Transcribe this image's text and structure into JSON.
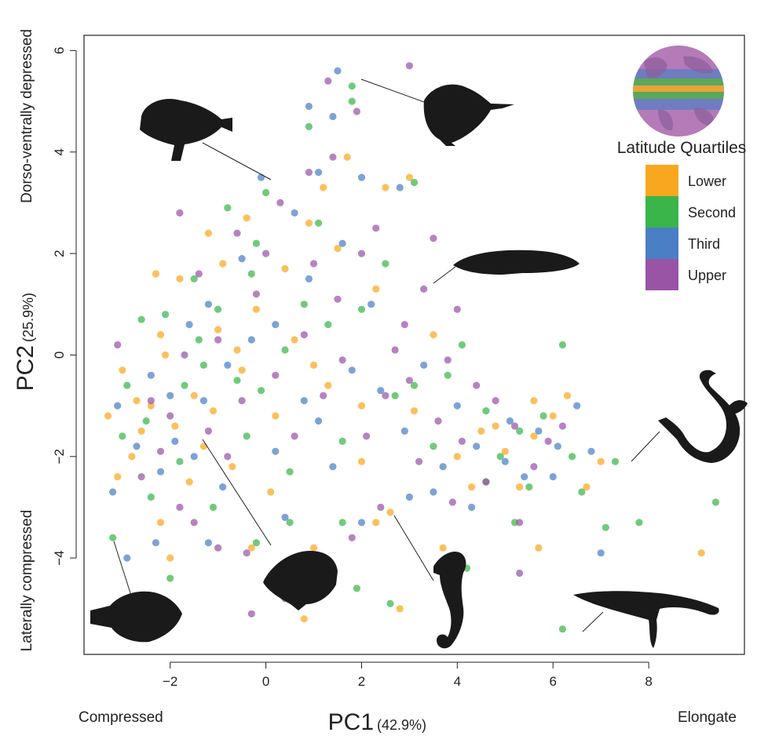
{
  "chart_data": {
    "type": "scatter",
    "title": "",
    "xlabel": "PC1",
    "xlabel_pct": "(42.9%)",
    "ylabel": "PC2",
    "ylabel_pct": "(25.9%)",
    "xlim": [
      -3.8,
      10.0
    ],
    "ylim": [
      -5.9,
      6.3
    ],
    "x_ticks": [
      -2,
      0,
      2,
      4,
      6,
      8
    ],
    "y_ticks": [
      -4,
      -2,
      0,
      2,
      4,
      6
    ],
    "x_tick_labels": [
      "−2",
      "0",
      "2",
      "4",
      "6",
      "8"
    ],
    "y_tick_labels": [
      "−4",
      "−2",
      "0",
      "2",
      "4",
      "6"
    ],
    "x_axis_left_descriptor": "Compressed",
    "x_axis_right_descriptor": "Elongate",
    "y_axis_top_descriptor": "Dorso-ventrally depressed",
    "y_axis_bottom_descriptor": "Laterally compressed",
    "grid": false,
    "legend": {
      "title": "Latitude Quartiles",
      "placement": "top-right",
      "entries": [
        {
          "label": "Lower",
          "color": "#F9A71E"
        },
        {
          "label": "Second",
          "color": "#3AB54A"
        },
        {
          "label": "Third",
          "color": "#4A7FC5"
        },
        {
          "label": "Upper",
          "color": "#9954A6"
        }
      ]
    },
    "series": [
      {
        "name": "Lower",
        "color": "#F9A71E",
        "points": [
          [
            2.5,
            3.3
          ],
          [
            3.0,
            3.5
          ],
          [
            1.7,
            3.9
          ],
          [
            1.2,
            3.3
          ],
          [
            -3.3,
            -1.2
          ],
          [
            -3.1,
            -2.4
          ],
          [
            -2.2,
            -3.3
          ],
          [
            -2.0,
            -4.0
          ],
          [
            -0.3,
            -3.8
          ],
          [
            0.8,
            -5.2
          ],
          [
            1.0,
            -3.8
          ],
          [
            2.3,
            -3.3
          ],
          [
            2.8,
            -5.0
          ],
          [
            3.7,
            -3.8
          ],
          [
            5.3,
            -2.6
          ],
          [
            5.6,
            -0.9
          ],
          [
            6.3,
            -0.8
          ],
          [
            6.7,
            -2.6
          ],
          [
            7.0,
            -2.1
          ],
          [
            9.1,
            -3.9
          ],
          [
            5.7,
            -3.8
          ],
          [
            2.6,
            -3.1
          ],
          [
            4.5,
            -1.5
          ],
          [
            3.5,
            0.4
          ],
          [
            -0.4,
            2.7
          ],
          [
            0.4,
            1.7
          ],
          [
            1.5,
            2.1
          ],
          [
            -1.8,
            1.5
          ],
          [
            -2.3,
            1.6
          ],
          [
            -2.1,
            0.0
          ],
          [
            0.2,
            -1.2
          ],
          [
            -1.0,
            0.5
          ],
          [
            -1.5,
            -0.8
          ],
          [
            -0.5,
            -0.3
          ],
          [
            1.0,
            -0.2
          ],
          [
            2.0,
            -1.0
          ],
          [
            4.0,
            -2.0
          ],
          [
            5.0,
            -1.9
          ],
          [
            4.8,
            -1.4
          ],
          [
            3.1,
            -1.1
          ],
          [
            -2.7,
            -0.9
          ],
          [
            -2.6,
            -1.5
          ],
          [
            -2.4,
            -1.0
          ],
          [
            -1.9,
            -1.4
          ],
          [
            -1.3,
            -1.8
          ],
          [
            -1.1,
            -1.1
          ],
          [
            -0.9,
            1.8
          ],
          [
            -0.2,
            0.9
          ],
          [
            0.6,
            0.3
          ],
          [
            1.3,
            -0.6
          ],
          [
            -2.8,
            -2.0
          ],
          [
            -3.0,
            -0.3
          ],
          [
            -1.6,
            -2.5
          ],
          [
            -0.7,
            -2.2
          ],
          [
            0.1,
            -2.7
          ],
          [
            2.3,
            1.3
          ],
          [
            2.0,
            -2.1
          ],
          [
            5.6,
            -1.6
          ],
          [
            6.0,
            -1.2
          ],
          [
            4.3,
            -2.6
          ],
          [
            -1.2,
            2.4
          ],
          [
            0.9,
            2.6
          ],
          [
            -0.6,
            0.1
          ],
          [
            -2.2,
            0.4
          ]
        ]
      },
      {
        "name": "Second",
        "color": "#3AB54A",
        "points": [
          [
            1.8,
            5.3
          ],
          [
            1.8,
            5.0
          ],
          [
            0.9,
            4.5
          ],
          [
            3.1,
            3.4
          ],
          [
            -3.2,
            -3.6
          ],
          [
            -2.0,
            -4.4
          ],
          [
            -0.2,
            -3.7
          ],
          [
            1.9,
            -4.6
          ],
          [
            2.6,
            -4.9
          ],
          [
            4.2,
            -4.2
          ],
          [
            6.2,
            -5.4
          ],
          [
            7.3,
            -2.1
          ],
          [
            7.1,
            -3.4
          ],
          [
            7.8,
            -3.3
          ],
          [
            9.4,
            -2.9
          ],
          [
            6.6,
            -2.7
          ],
          [
            5.2,
            -3.3
          ],
          [
            4.9,
            -2.0
          ],
          [
            5.8,
            -1.2
          ],
          [
            6.2,
            0.2
          ],
          [
            4.1,
            0.2
          ],
          [
            3.1,
            -0.6
          ],
          [
            -0.8,
            2.9
          ],
          [
            0.0,
            3.2
          ],
          [
            1.1,
            2.6
          ],
          [
            -2.1,
            0.8
          ],
          [
            -2.6,
            0.7
          ],
          [
            -1.5,
            1.5
          ],
          [
            -0.3,
            1.6
          ],
          [
            0.8,
            1.0
          ],
          [
            -0.6,
            -0.5
          ],
          [
            -1.3,
            -0.2
          ],
          [
            -2.5,
            -1.3
          ],
          [
            -1.8,
            -2.1
          ],
          [
            -1.1,
            -3.0
          ],
          [
            0.5,
            -2.3
          ],
          [
            1.6,
            -1.7
          ],
          [
            2.7,
            -0.8
          ],
          [
            3.5,
            -1.8
          ],
          [
            4.6,
            -1.1
          ],
          [
            5.3,
            -1.5
          ],
          [
            6.4,
            -2.0
          ],
          [
            -3.0,
            -1.6
          ],
          [
            -2.4,
            -2.8
          ],
          [
            -0.4,
            -1.6
          ],
          [
            0.4,
            0.1
          ],
          [
            1.3,
            0.6
          ],
          [
            2.0,
            0.9
          ],
          [
            -1.0,
            0.9
          ],
          [
            -1.7,
            -0.6
          ],
          [
            -0.2,
            2.2
          ],
          [
            2.5,
            1.8
          ],
          [
            3.8,
            -0.4
          ],
          [
            4.6,
            -2.5
          ],
          [
            5.5,
            -2.6
          ],
          [
            -2.9,
            -0.6
          ],
          [
            -1.4,
            0.3
          ],
          [
            -0.1,
            -0.7
          ],
          [
            1.6,
            -3.3
          ],
          [
            0.5,
            -3.3
          ]
        ]
      },
      {
        "name": "Third",
        "color": "#4A7FC5",
        "points": [
          [
            1.5,
            5.6
          ],
          [
            0.9,
            4.9
          ],
          [
            1.4,
            4.7
          ],
          [
            1.1,
            3.6
          ],
          [
            2.0,
            3.5
          ],
          [
            2.8,
            3.3
          ],
          [
            -3.2,
            -2.7
          ],
          [
            -2.9,
            -4.0
          ],
          [
            -2.3,
            -3.7
          ],
          [
            -1.2,
            -3.7
          ],
          [
            0.4,
            -3.2
          ],
          [
            2.0,
            -3.3
          ],
          [
            3.5,
            -2.7
          ],
          [
            4.3,
            -3.0
          ],
          [
            5.0,
            -2.1
          ],
          [
            6.0,
            -2.4
          ],
          [
            6.8,
            -1.9
          ],
          [
            7.0,
            -3.9
          ],
          [
            6.5,
            -1.0
          ],
          [
            5.7,
            -1.5
          ],
          [
            -0.1,
            3.5
          ],
          [
            1.6,
            2.2
          ],
          [
            0.6,
            2.8
          ],
          [
            -1.2,
            1.0
          ],
          [
            -0.5,
            1.9
          ],
          [
            0.2,
            0.6
          ],
          [
            -2.4,
            -0.4
          ],
          [
            -1.9,
            -1.7
          ],
          [
            -1.3,
            -0.9
          ],
          [
            -0.8,
            -0.2
          ],
          [
            0.8,
            -0.9
          ],
          [
            1.8,
            -0.3
          ],
          [
            2.9,
            -1.5
          ],
          [
            3.7,
            -2.2
          ],
          [
            4.4,
            -1.8
          ],
          [
            -2.7,
            -1.8
          ],
          [
            -2.2,
            -2.3
          ],
          [
            -0.9,
            -2.6
          ],
          [
            0.2,
            -1.9
          ],
          [
            1.1,
            -1.3
          ],
          [
            2.4,
            -0.7
          ],
          [
            3.3,
            -0.2
          ],
          [
            4.0,
            -1.0
          ],
          [
            5.1,
            -1.3
          ],
          [
            -1.6,
            0.6
          ],
          [
            -0.3,
            0.3
          ],
          [
            0.9,
            1.5
          ],
          [
            2.2,
            1.0
          ],
          [
            -3.1,
            -1.0
          ],
          [
            -2.0,
            -0.8
          ],
          [
            6.1,
            -1.8
          ],
          [
            5.4,
            -2.4
          ],
          [
            3.0,
            -2.8
          ],
          [
            1.4,
            -2.2
          ],
          [
            -1.5,
            -2.0
          ]
        ]
      },
      {
        "name": "Upper",
        "color": "#9954A6",
        "points": [
          [
            3.0,
            5.7
          ],
          [
            1.3,
            5.4
          ],
          [
            1.9,
            4.8
          ],
          [
            0.9,
            3.6
          ],
          [
            1.4,
            3.9
          ],
          [
            -1.8,
            2.8
          ],
          [
            -3.1,
            0.2
          ],
          [
            -2.4,
            -0.9
          ],
          [
            -1.5,
            -3.3
          ],
          [
            -1.0,
            -3.8
          ],
          [
            -0.4,
            -3.9
          ],
          [
            -0.3,
            -5.1
          ],
          [
            0.4,
            -4.8
          ],
          [
            1.8,
            -3.6
          ],
          [
            2.4,
            -3.0
          ],
          [
            3.9,
            -2.9
          ],
          [
            4.6,
            -2.5
          ],
          [
            5.3,
            -3.3
          ],
          [
            5.3,
            -4.3
          ],
          [
            4.0,
            0.9
          ],
          [
            3.3,
            1.3
          ],
          [
            3.5,
            2.3
          ],
          [
            2.9,
            0.6
          ],
          [
            2.0,
            2.0
          ],
          [
            0.3,
            3.0
          ],
          [
            -0.6,
            2.4
          ],
          [
            -1.4,
            1.6
          ],
          [
            -0.2,
            1.2
          ],
          [
            0.8,
            0.4
          ],
          [
            1.6,
            -0.1
          ],
          [
            2.5,
            -0.8
          ],
          [
            3.6,
            -1.3
          ],
          [
            4.4,
            -0.6
          ],
          [
            5.2,
            -1.4
          ],
          [
            5.9,
            -1.7
          ],
          [
            -2.0,
            -1.2
          ],
          [
            -1.2,
            -1.5
          ],
          [
            -0.5,
            -0.9
          ],
          [
            0.2,
            -0.4
          ],
          [
            1.2,
            -0.8
          ],
          [
            2.1,
            -1.6
          ],
          [
            3.2,
            -2.1
          ],
          [
            4.1,
            -1.7
          ],
          [
            -2.6,
            -2.4
          ],
          [
            -1.8,
            -3.0
          ],
          [
            -0.8,
            -2.0
          ],
          [
            0.6,
            -1.6
          ],
          [
            1.5,
            1.1
          ],
          [
            2.7,
            0.1
          ],
          [
            3.8,
            -0.1
          ],
          [
            -1.0,
            0.3
          ],
          [
            -1.7,
            0.0
          ],
          [
            0.0,
            2.0
          ],
          [
            1.0,
            1.8
          ],
          [
            2.3,
            2.5
          ],
          [
            4.8,
            -0.9
          ],
          [
            5.6,
            -2.2
          ],
          [
            6.2,
            -1.4
          ],
          [
            3.0,
            -0.5
          ],
          [
            -2.2,
            -1.9
          ]
        ]
      }
    ]
  }
}
